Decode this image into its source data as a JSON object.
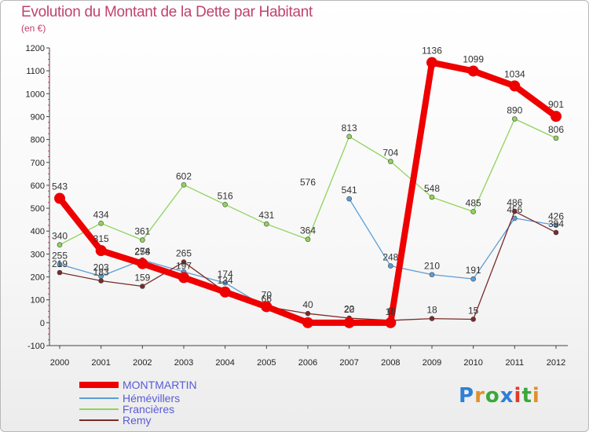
{
  "title": "Evolution du Montant de la Dette par Habitant",
  "subtitle": "(en €)",
  "logo": {
    "text": "Proxiti",
    "colors": [
      "#2f7fd4",
      "#e0902a",
      "#3aa83a",
      "#2f7fd4",
      "#e23a2a",
      "#3aa83a",
      "#e0902a"
    ]
  },
  "chart_data": {
    "type": "line",
    "categories": [
      "2000",
      "2001",
      "2002",
      "2003",
      "2004",
      "2005",
      "2006",
      "2007",
      "2008",
      "2009",
      "2010",
      "2011",
      "2012"
    ],
    "ylim": [
      -100,
      1200
    ],
    "yticks": [
      -100,
      0,
      100,
      200,
      300,
      400,
      500,
      600,
      700,
      800,
      900,
      1000,
      1100,
      1200
    ],
    "grid": false,
    "legend_position": "bottom-left",
    "series": [
      {
        "name": "MONTMARTIN",
        "color": "#ee0000",
        "style": "thick",
        "values": [
          543,
          315,
          258,
          197,
          134,
          70,
          0,
          0,
          0,
          1136,
          1099,
          1034,
          901
        ],
        "labels": [
          "543",
          "315",
          "258",
          "197",
          "134",
          "70",
          "",
          "",
          "0",
          "1136",
          "1099",
          "1034",
          "901"
        ]
      },
      {
        "name": "Hémévillers",
        "color": "#5b9ed6",
        "values": [
          255,
          203,
          274,
          222,
          174,
          66,
          null,
          541,
          248,
          210,
          191,
          456,
          426
        ],
        "labels": [
          "255",
          "203",
          "274",
          "",
          "174",
          "66",
          "",
          "541",
          "248",
          "210",
          "191",
          "456",
          "426"
        ]
      },
      {
        "name": "Francières",
        "color": "#8fd45a",
        "values": [
          340,
          434,
          361,
          602,
          516,
          431,
          364,
          813,
          704,
          548,
          485,
          890,
          806
        ],
        "labels": [
          "340",
          "434",
          "361",
          "602",
          "516",
          "431",
          "364",
          "813",
          "704",
          "548",
          "485",
          "890",
          "806"
        ]
      },
      {
        "name": "Remy",
        "color": "#7a2a2a",
        "values": [
          219,
          183,
          159,
          265,
          134,
          70,
          40,
          20,
          10,
          18,
          15,
          486,
          394
        ],
        "labels": [
          "219",
          "183",
          "159",
          "265",
          "",
          "",
          "40",
          "20",
          "",
          "18",
          "15",
          "486",
          "394"
        ]
      }
    ],
    "extra_labels": [
      "576",
      "22",
      "10"
    ]
  }
}
